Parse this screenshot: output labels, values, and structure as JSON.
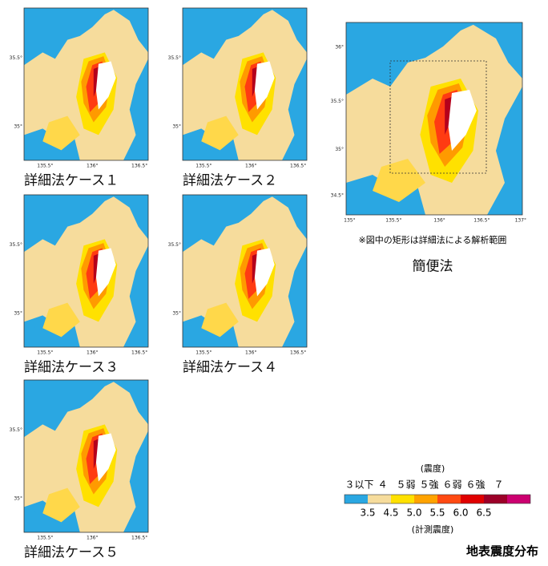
{
  "panels": [
    {
      "label": "詳細法ケース１",
      "y_ticks": [
        "35.5°",
        "35°"
      ],
      "x_ticks": [
        "135.5°",
        "136°",
        "136.5°"
      ]
    },
    {
      "label": "詳細法ケース２",
      "y_ticks": [
        "35.5°",
        "35°"
      ],
      "x_ticks": [
        "135.5°",
        "136°",
        "136.5°"
      ]
    },
    {
      "label": "詳細法ケース３",
      "y_ticks": [
        "35.5°",
        "35°"
      ],
      "x_ticks": [
        "135.5°",
        "136°",
        "136.5°"
      ]
    },
    {
      "label": "詳細法ケース４",
      "y_ticks": [
        "35.5°",
        "35°"
      ],
      "x_ticks": [
        "135.5°",
        "136°",
        "136.5°"
      ]
    },
    {
      "label": "詳細法ケース５",
      "y_ticks": [
        "35.5°",
        "35°"
      ],
      "x_ticks": [
        "135.5°",
        "136°",
        "136.5°"
      ]
    }
  ],
  "overview": {
    "y_ticks": [
      "36°",
      "35.5°",
      "35°",
      "34.5°"
    ],
    "x_ticks": [
      "135°",
      "135.5°",
      "136°",
      "136.5°",
      "137°"
    ],
    "note": "※図中の矩形は詳細法による解析範囲",
    "label": "簡便法"
  },
  "legend": {
    "unit_top": "(震度)",
    "classes": [
      "３以下",
      "４",
      "５弱",
      "５強",
      "６弱",
      "６強",
      "７"
    ],
    "values": [
      "3.5",
      "4.5",
      "5.0",
      "5.5",
      "6.0",
      "6.5"
    ],
    "unit_bottom": "(計測震度)",
    "title": "地表震度分布"
  }
}
